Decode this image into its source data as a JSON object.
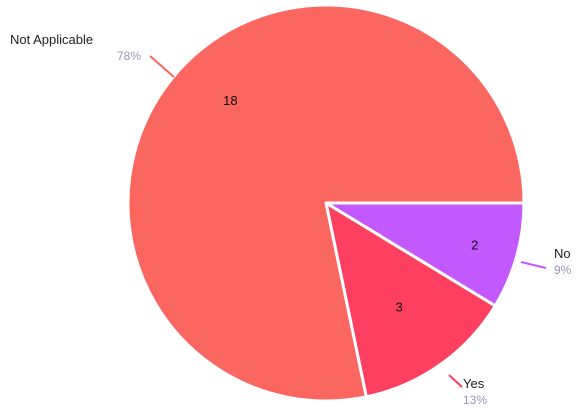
{
  "chart_data": {
    "type": "pie",
    "slices": [
      {
        "label": "Not Applicable",
        "value": 18,
        "percent_label": "78%",
        "color": "#fb6660"
      },
      {
        "label": "Yes",
        "value": 3,
        "percent_label": "13%",
        "color": "#ff3f5f"
      },
      {
        "label": "No",
        "value": 2,
        "percent_label": "9%",
        "color": "#c358ff"
      }
    ],
    "percent_color": "#9c93b6",
    "start": "3 o'clock",
    "direction": "clockwise from No",
    "legend": "callout labels beside each slice"
  }
}
